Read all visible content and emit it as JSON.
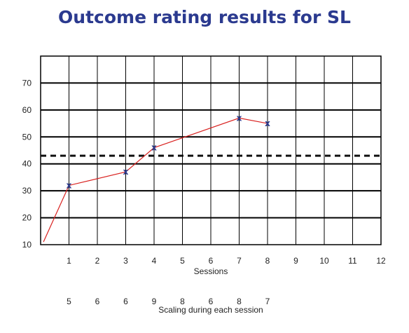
{
  "chart_data": {
    "type": "line",
    "title": "Outcome rating results for SL",
    "xlabel": "Sessions",
    "ylabel": "",
    "xlim": [
      0,
      12
    ],
    "ylim": [
      10,
      80
    ],
    "x_ticks": [
      1,
      2,
      3,
      4,
      5,
      6,
      7,
      8,
      9,
      10,
      11,
      12
    ],
    "y_ticks": [
      10,
      20,
      30,
      40,
      50,
      60,
      70
    ],
    "grid": true,
    "threshold_line": {
      "y": 43,
      "style": "dashed",
      "color": "#111111"
    },
    "series": [
      {
        "color": "#d9211f",
        "marker_color": "#2b3a8f",
        "points": [
          {
            "x": 0.1,
            "y": 11
          },
          {
            "x": 1,
            "y": 32
          },
          {
            "x": 3,
            "y": 37
          },
          {
            "x": 4,
            "y": 46
          },
          {
            "x": 7,
            "y": 57
          },
          {
            "x": 8,
            "y": 55
          }
        ],
        "marker_x": [
          1,
          3,
          4,
          7,
          8
        ]
      }
    ],
    "secondary_row": {
      "label": "Scaling during each session",
      "entries": [
        {
          "session": 1,
          "value": "5"
        },
        {
          "session": 2,
          "value": "6"
        },
        {
          "session": 3,
          "value": "6"
        },
        {
          "session": 4,
          "value": "9"
        },
        {
          "session": 5,
          "value": "8"
        },
        {
          "session": 6,
          "value": "6"
        },
        {
          "session": 7,
          "value": "8"
        },
        {
          "session": 8,
          "value": "7"
        }
      ]
    }
  }
}
